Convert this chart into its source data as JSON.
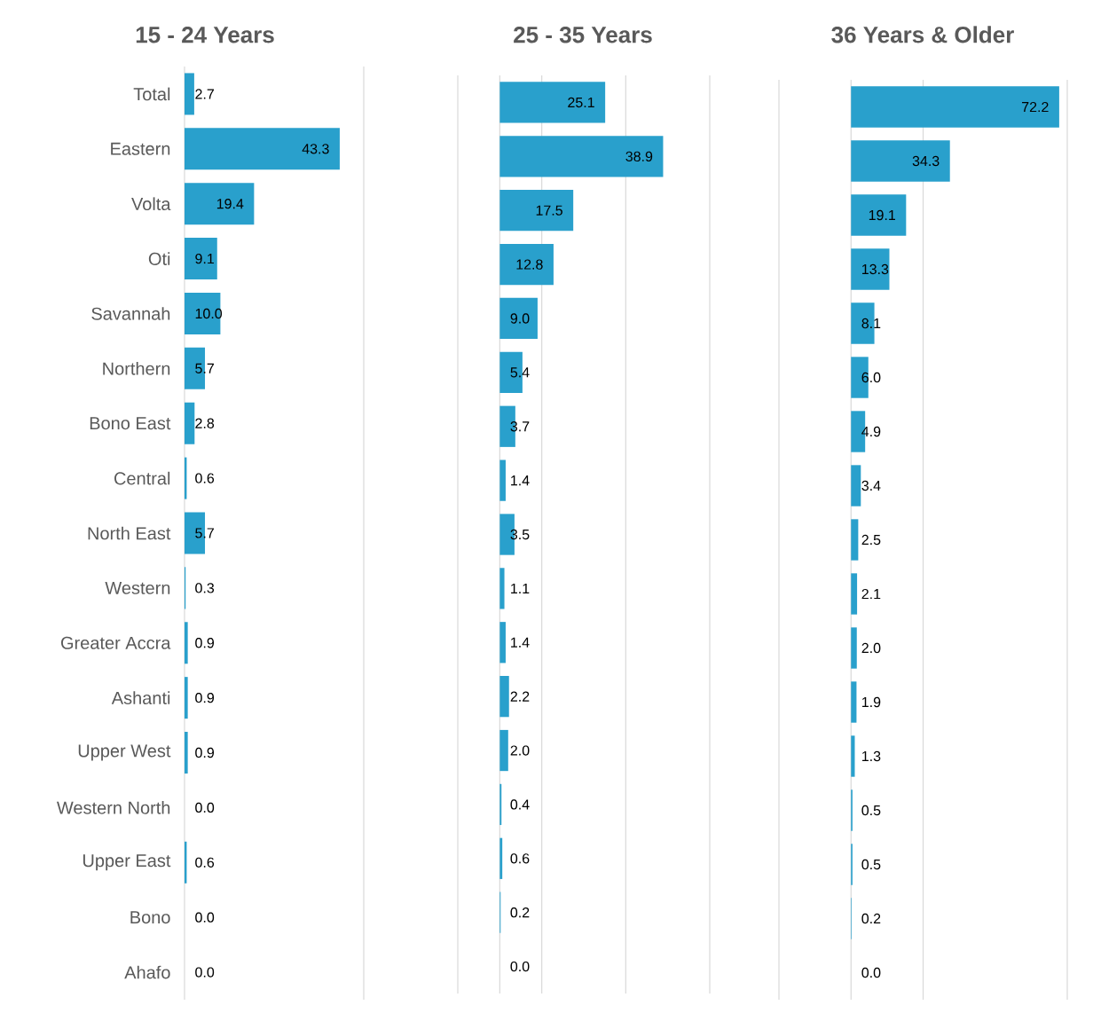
{
  "chart_data": [
    {
      "type": "bar",
      "orientation": "horizontal",
      "title": "15 - 24 Years",
      "categories": [
        "Total",
        "Eastern",
        "Volta",
        "Oti",
        "Savannah",
        "Northern",
        "Bono East",
        "Central",
        "North East",
        "Western",
        "Greater Accra",
        "Ashanti",
        "Upper West",
        "Western North",
        "Upper East",
        "Bono",
        "Ahafo"
      ],
      "values": [
        2.7,
        43.3,
        19.4,
        9.1,
        10.0,
        5.7,
        2.8,
        0.6,
        5.7,
        0.3,
        0.9,
        0.9,
        0.9,
        0.0,
        0.6,
        0.0,
        0.0
      ],
      "value_labels": [
        "2.7",
        "43.3",
        "19.4",
        "9.1",
        "10.0",
        "5.7",
        "2.8",
        "0.6",
        "5.7",
        "0.3",
        "0.9",
        "0.9",
        "0.9",
        "0.0",
        "0.6",
        "0.0",
        "0.0"
      ],
      "color": "#29a0cc",
      "xlim": [
        0,
        50
      ],
      "xticks": [
        {
          "value": 0,
          "label": null
        },
        {
          "value": 50,
          "label": null
        }
      ],
      "data_labels": true,
      "tick_labels": "y"
    },
    {
      "type": "bar",
      "orientation": "horizontal",
      "title": "25 - 35 Years",
      "categories": [
        null,
        null,
        null,
        null,
        null,
        null,
        null,
        null,
        null,
        null,
        null,
        null,
        null,
        null,
        null,
        null,
        null
      ],
      "values": [
        25.1,
        38.9,
        17.5,
        12.8,
        9.0,
        5.4,
        3.7,
        1.4,
        3.5,
        1.1,
        1.4,
        2.2,
        2.0,
        0.4,
        0.6,
        0.2,
        0.0
      ],
      "value_labels": [
        "25.1",
        "38.9",
        "17.5",
        "12.8",
        "9.0",
        "5.4",
        "3.7",
        "1.4",
        "3.5",
        "1.1",
        "1.4",
        "2.2",
        "2.0",
        "0.4",
        "0.6",
        "0.2",
        "0.0"
      ],
      "color": "#29a0cc",
      "xlim": [
        -10,
        50
      ],
      "xticks": [
        {
          "value": -10,
          "label": null
        },
        {
          "value": 0,
          "label": null
        },
        {
          "value": 10,
          "label": null
        },
        {
          "value": 30,
          "label": null
        },
        {
          "value": 50,
          "label": null
        }
      ],
      "grid": "x",
      "data_labels": true,
      "tick_labels": false
    },
    {
      "type": "bar",
      "orientation": "horizontal",
      "title": "36 Years & Older",
      "categories": [
        null,
        null,
        null,
        null,
        null,
        null,
        null,
        null,
        null,
        null,
        null,
        null,
        null,
        null,
        null,
        null,
        null
      ],
      "values": [
        72.2,
        34.3,
        19.1,
        13.3,
        8.1,
        6.0,
        4.9,
        3.4,
        2.5,
        2.1,
        2.0,
        1.9,
        1.3,
        0.5,
        0.5,
        0.2,
        0.0
      ],
      "value_labels": [
        "72.2",
        "34.3",
        "19.1",
        "13.3",
        "8.1",
        "6.0",
        "4.9",
        "3.4",
        "2.5",
        "2.1",
        "2.0",
        "1.9",
        "1.3",
        "0.5",
        "0.5",
        "0.2",
        "0.0"
      ],
      "color": "#29a0cc",
      "xlim": [
        -25,
        75
      ],
      "xticks": [
        {
          "value": -25,
          "label": null
        },
        {
          "value": 0,
          "label": null
        },
        {
          "value": 25,
          "label": null
        },
        {
          "value": 75,
          "label": null
        }
      ],
      "grid": "x",
      "data_labels": true,
      "tick_labels": false
    }
  ]
}
